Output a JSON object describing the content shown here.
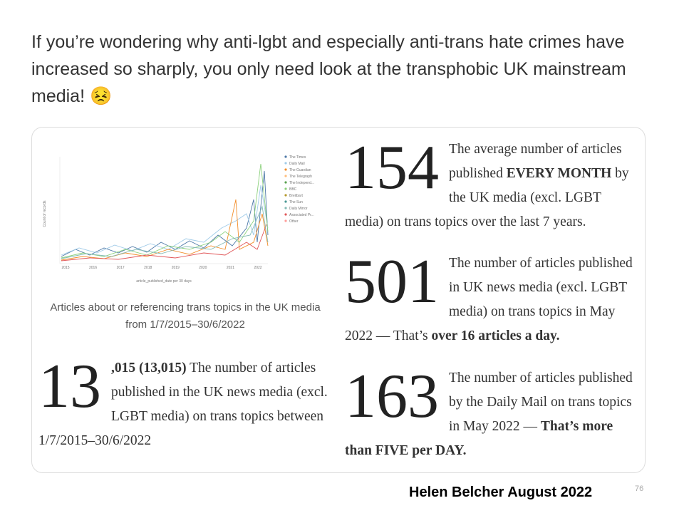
{
  "header": {
    "title": "If you’re wondering why anti-lgbt and especially anti-trans hate crimes have increased so sharply, you only need look at the transphobic UK mainstream media! 😣"
  },
  "figure": {
    "y_axis_label": "Count of records",
    "x_axis_label": "article_published_date per 30 days",
    "x_ticks": [
      "2015",
      "2016",
      "2017",
      "2018",
      "2019",
      "2020",
      "2021",
      "2022"
    ],
    "legend": [
      {
        "name": "The Times",
        "color": "#4e79a7"
      },
      {
        "name": "Daily Mail",
        "color": "#a0cbe8"
      },
      {
        "name": "The Guardian",
        "color": "#f28e2b"
      },
      {
        "name": "The Telegraph",
        "color": "#ffbe7d"
      },
      {
        "name": "The Independ...",
        "color": "#59a14f"
      },
      {
        "name": "BBC",
        "color": "#8cd17d"
      },
      {
        "name": "Breitbart",
        "color": "#b6992d"
      },
      {
        "name": "The Sun",
        "color": "#499894"
      },
      {
        "name": "Daily Mirror",
        "color": "#86bcb6"
      },
      {
        "name": "Associated Pr...",
        "color": "#e15759"
      },
      {
        "name": "Other",
        "color": "#ff9d9a"
      }
    ],
    "caption": "Articles about or referencing trans topics in the UK media from 1/7/2015–30/6/2022"
  },
  "stats": [
    {
      "number": "13",
      "segments": [
        {
          "text": ",015 (13,015)",
          "bold": true
        },
        {
          "text": " The number of articles published in the UK news media (excl. LGBT media) on trans topics between 1/7/2015–30/6/2022",
          "bold": false
        }
      ]
    },
    {
      "number": "154",
      "segments": [
        {
          "text": "The average number of articles published ",
          "bold": false
        },
        {
          "text": "EVERY MONTH",
          "bold": true
        },
        {
          "text": " by the UK media (excl. LGBT media) on trans topics over the last 7 years.",
          "bold": false
        }
      ]
    },
    {
      "number": "501",
      "segments": [
        {
          "text": "The number of articles published in UK news media (excl. LGBT media) on trans topics in May 2022 — That’s ",
          "bold": false
        },
        {
          "text": "over 16 articles a day.",
          "bold": true
        }
      ]
    },
    {
      "number": "163",
      "segments": [
        {
          "text": "The number of articles published by the Daily Mail on trans topics in May 2022 — ",
          "bold": false
        },
        {
          "text": "That’s more than FIVE per DAY.",
          "bold": true
        }
      ]
    }
  ],
  "footer": {
    "author": "Helen Belcher August 2022",
    "page": "76"
  }
}
